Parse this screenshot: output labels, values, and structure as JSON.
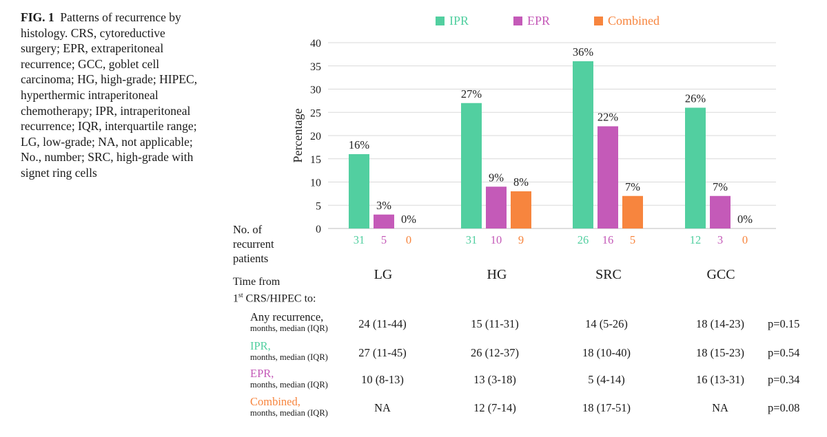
{
  "caption": {
    "figure_label": "FIG. 1",
    "text": "Patterns of recurrence by histology. CRS, cytoreductive surgery; EPR, extraperitoneal recurrence; GCC, goblet cell carcinoma; HG, high-grade; HIPEC, hyperthermic intraperitoneal chemotherapy; IPR, intraperitoneal recurrence; IQR, interquartile range; LG, low-grade; NA, not applicable; No., number; SRC, high-grade with signet ring cells"
  },
  "colors": {
    "IPR": "#52cfa0",
    "EPR": "#c45ab8",
    "Combined": "#f7853e"
  },
  "chart_data": {
    "type": "bar",
    "categories": [
      "LG",
      "HG",
      "SRC",
      "GCC"
    ],
    "series": [
      {
        "name": "IPR",
        "values": [
          16,
          27,
          36,
          26
        ],
        "labels": [
          "16%",
          "27%",
          "36%",
          "26%"
        ],
        "counts": [
          "31",
          "31",
          "26",
          "12"
        ]
      },
      {
        "name": "EPR",
        "values": [
          3,
          9,
          22,
          7
        ],
        "labels": [
          "3%",
          "9%",
          "22%",
          "7%"
        ],
        "counts": [
          "5",
          "10",
          "16",
          "3"
        ]
      },
      {
        "name": "Combined",
        "values": [
          0,
          8,
          7,
          0
        ],
        "labels": [
          "0%",
          "8%",
          "7%",
          "0%"
        ],
        "counts": [
          "0",
          "9",
          "5",
          "0"
        ]
      }
    ],
    "ylabel": "Percentage",
    "ylim": [
      0,
      40
    ],
    "yticks": [
      "0",
      "5",
      "10",
      "15",
      "20",
      "25",
      "30",
      "35",
      "40"
    ],
    "grid": true,
    "legend": "top"
  },
  "counts_label": [
    "No. of",
    "recurrent",
    "patients"
  ],
  "table": {
    "title_line1": "Time from",
    "title_prefix": "1",
    "title_sup": "st",
    "title_line2": " CRS/HIPEC to:",
    "columns": [
      "LG",
      "HG",
      "SRC",
      "GCC"
    ],
    "rows": [
      {
        "label": "Any recurrence,",
        "sublabel": "months, median (IQR)",
        "cells": [
          "24 (11-44)",
          "15 (11-31)",
          "14 (5-26)",
          "18 (14-23)"
        ],
        "p": "p=0.15"
      },
      {
        "label": "IPR,",
        "sublabel": "months, median (IQR)",
        "cells": [
          "27 (11-45)",
          "26 (12-37)",
          "18 (10-40)",
          "18 (15-23)"
        ],
        "p": "p=0.54"
      },
      {
        "label": "EPR,",
        "sublabel": "months, median (IQR)",
        "cells": [
          "10 (8-13)",
          "13 (3-18)",
          "5 (4-14)",
          "16 (13-31)"
        ],
        "p": "p=0.34"
      },
      {
        "label": "Combined,",
        "sublabel": "months, median (IQR)",
        "cells": [
          "NA",
          "12 (7-14)",
          "18 (17-51)",
          "NA"
        ],
        "p": "p=0.08"
      }
    ]
  }
}
